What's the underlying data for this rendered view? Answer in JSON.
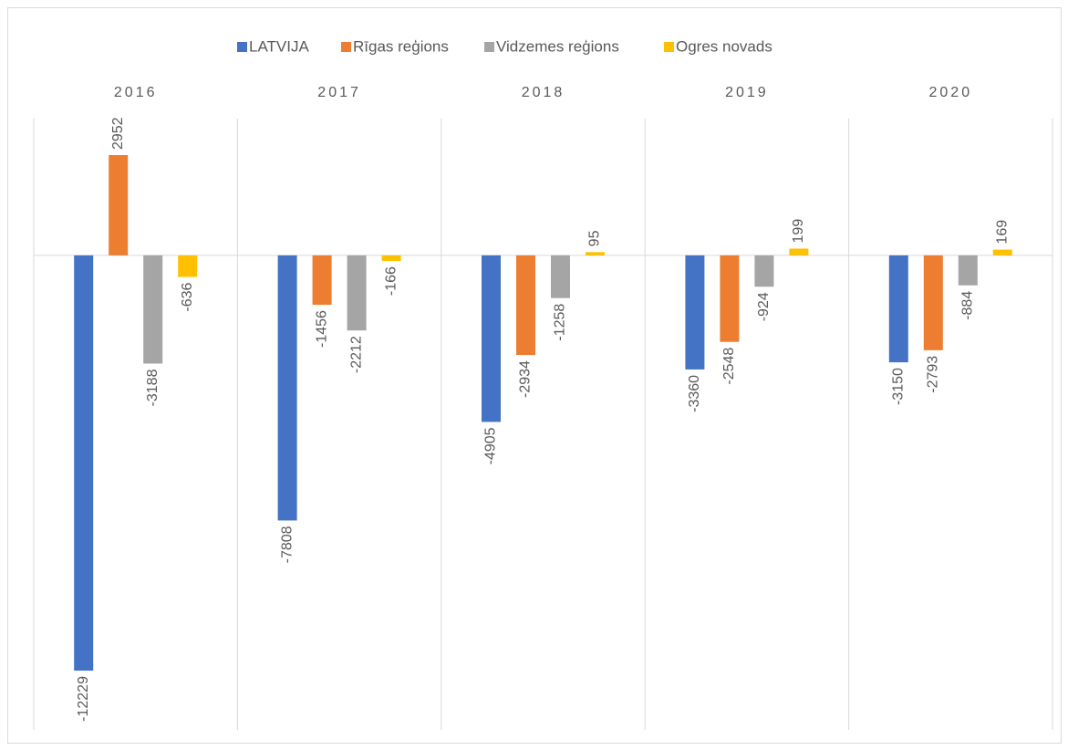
{
  "chart_data": {
    "type": "bar",
    "categories": [
      "2016",
      "2017",
      "2018",
      "2019",
      "2020"
    ],
    "series": [
      {
        "name": "LATVIJA",
        "color": "#4472c4",
        "values": [
          -12229,
          -7808,
          -4905,
          -3360,
          -3150
        ]
      },
      {
        "name": "Rīgas reģions",
        "color": "#ed7d31",
        "values": [
          2952,
          -1456,
          -2934,
          -2548,
          -2793
        ]
      },
      {
        "name": "Vidzemes reģions",
        "color": "#a5a5a5",
        "values": [
          -3188,
          -2212,
          -1258,
          -924,
          -884
        ]
      },
      {
        "name": "Ogres novads",
        "color": "#ffc000",
        "values": [
          -636,
          -166,
          95,
          199,
          169
        ]
      }
    ],
    "legend": "top"
  }
}
